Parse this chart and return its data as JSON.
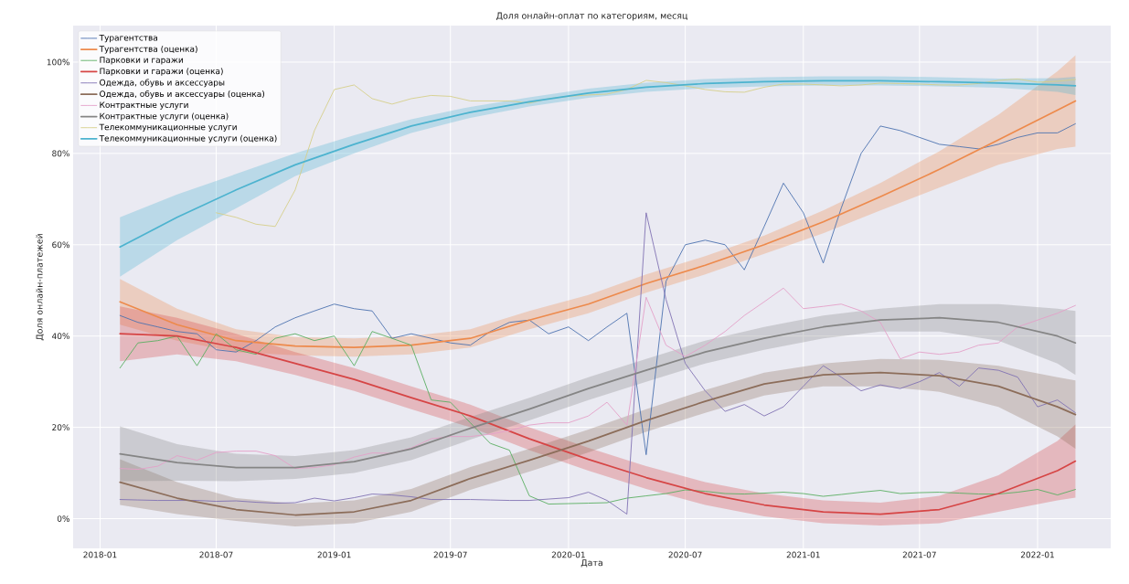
{
  "chart_data": {
    "type": "line",
    "title": "Доля онлайн-оплат по категориям, месяц",
    "xlabel": "Дата",
    "ylabel": "Доля онлайн-платежей",
    "x": [
      "2018-02",
      "2018-03",
      "2018-04",
      "2018-05",
      "2018-06",
      "2018-07",
      "2018-08",
      "2018-09",
      "2018-10",
      "2018-11",
      "2018-12",
      "2019-01",
      "2019-02",
      "2019-03",
      "2019-04",
      "2019-05",
      "2019-06",
      "2019-07",
      "2019-08",
      "2019-09",
      "2019-10",
      "2019-11",
      "2019-12",
      "2020-01",
      "2020-02",
      "2020-03",
      "2020-04",
      "2020-05",
      "2020-06",
      "2020-07",
      "2020-08",
      "2020-09",
      "2020-10",
      "2020-11",
      "2020-12",
      "2021-01",
      "2021-02",
      "2021-03",
      "2021-04",
      "2021-05",
      "2021-06",
      "2021-07",
      "2021-08",
      "2021-09",
      "2021-10",
      "2021-11",
      "2021-12",
      "2022-01",
      "2022-02",
      "2022-03"
    ],
    "xlim": [
      "2017-11-20",
      "2022-04-25"
    ],
    "xticks": [
      "2018-01",
      "2018-07",
      "2019-01",
      "2019-07",
      "2020-01",
      "2020-07",
      "2021-01",
      "2021-07",
      "2022-01"
    ],
    "ylim": [
      -6.5,
      108
    ],
    "yticks": [
      {
        "value": 0,
        "label": "0%"
      },
      {
        "value": 20,
        "label": "20%"
      },
      {
        "value": 40,
        "label": "40%"
      },
      {
        "value": 60,
        "label": "60%"
      },
      {
        "value": 80,
        "label": "80%"
      },
      {
        "value": 100,
        "label": "100%"
      }
    ],
    "grid": true,
    "legend": "top left",
    "series": [
      {
        "name": "Турагентства",
        "color": "#4c72b0",
        "values": [
          44.5,
          43,
          42,
          41,
          40.5,
          37,
          36.5,
          39,
          42,
          44,
          45.5,
          47,
          46,
          45.5,
          39.5,
          40.5,
          39.5,
          38.5,
          38,
          41,
          43,
          43.5,
          40.5,
          42,
          39,
          42,
          45,
          14,
          52,
          60,
          61,
          60,
          54.5,
          64,
          73.5,
          67,
          56,
          68,
          80,
          86,
          85,
          83.5,
          82,
          81.5,
          81,
          82,
          83.5,
          84.5,
          84.5,
          86.5
        ]
      },
      {
        "name": "Турагентства (оценка)",
        "color": "#ed8a4c",
        "x": [
          "2018-02",
          "2018-05",
          "2018-08",
          "2018-11",
          "2019-02",
          "2019-05",
          "2019-08",
          "2019-11",
          "2020-02",
          "2020-05",
          "2020-08",
          "2020-11",
          "2021-02",
          "2021-05",
          "2021-08",
          "2021-11",
          "2022-02",
          "2022-03"
        ],
        "values": [
          47.5,
          42.5,
          39,
          37.8,
          37.5,
          38,
          39.5,
          43.5,
          47,
          51.5,
          55.5,
          60,
          65,
          70.5,
          76.5,
          83,
          89.5,
          91.5
        ],
        "lower": [
          42.5,
          39,
          36.5,
          35.8,
          35.5,
          36,
          37.5,
          41.5,
          45,
          49.5,
          53.5,
          58,
          62.5,
          67.5,
          72.5,
          77.5,
          81,
          81.5
        ],
        "upper": [
          52.5,
          46,
          41.5,
          39.8,
          39.5,
          40,
          41.5,
          45.5,
          49,
          53.5,
          57.5,
          62,
          67.5,
          73.5,
          80.5,
          88.5,
          98,
          101.5
        ]
      },
      {
        "name": "Парковки и гаражи",
        "color": "#5aae61",
        "values": [
          33,
          38.5,
          39,
          40,
          33.5,
          40.5,
          37,
          36,
          39.5,
          40.5,
          39,
          40,
          33.5,
          41,
          39.5,
          38,
          26,
          25.5,
          21,
          16.5,
          15,
          5,
          3.2,
          3.3,
          3.4,
          3.5,
          4.5,
          5,
          5.5,
          6.3,
          6,
          5.5,
          5.4,
          5.6,
          5.8,
          5.5,
          4.9,
          5.3,
          5.8,
          6.2,
          5.5,
          5.7,
          5.8,
          5.6,
          5.4,
          5.4,
          5.8,
          6.4,
          5.2,
          6.4
        ]
      },
      {
        "name": "Парковки и гаражи (оценка)",
        "color": "#d64545",
        "x": [
          "2018-02",
          "2018-05",
          "2018-08",
          "2018-11",
          "2019-02",
          "2019-05",
          "2019-08",
          "2019-11",
          "2020-02",
          "2020-05",
          "2020-08",
          "2020-11",
          "2021-02",
          "2021-05",
          "2021-08",
          "2021-11",
          "2022-02",
          "2022-03"
        ],
        "values": [
          40.5,
          40,
          37.5,
          34,
          30.5,
          26.5,
          22.5,
          17.5,
          13,
          9,
          5.5,
          3,
          1.5,
          1,
          2,
          5.5,
          10.5,
          12.6
        ],
        "lower": [
          34.5,
          36,
          34.5,
          31.5,
          28,
          24,
          20,
          15,
          10.5,
          6.5,
          3,
          0.5,
          -1,
          -1.5,
          -1,
          1.5,
          4,
          4.6
        ],
        "upper": [
          46.5,
          44,
          40.5,
          36.5,
          33,
          29,
          25,
          20,
          15.5,
          11.5,
          8,
          5.5,
          4,
          3.5,
          5,
          9.5,
          17,
          20.6
        ]
      },
      {
        "name": "Одежда, обувь и аксессуары",
        "color": "#8172b3",
        "values": [
          4.2,
          4.1,
          4,
          4,
          4,
          3.8,
          3.9,
          3.6,
          3.4,
          3.5,
          4.5,
          3.9,
          4.6,
          5.4,
          5.2,
          4.8,
          4.2,
          4.2,
          4.2,
          4.1,
          4,
          4,
          4.3,
          4.6,
          5.8,
          4,
          1,
          67,
          48,
          34,
          28,
          23.5,
          25,
          22.5,
          24.5,
          29,
          33.5,
          31,
          28,
          29.3,
          28.5,
          30,
          32,
          29,
          33,
          32.5,
          31,
          24.5,
          26,
          23.2
        ]
      },
      {
        "name": "Одежда, обувь и аксессуары (оценка)",
        "color": "#8c6d5a",
        "x": [
          "2018-02",
          "2018-05",
          "2018-08",
          "2018-11",
          "2019-02",
          "2019-05",
          "2019-08",
          "2019-11",
          "2020-02",
          "2020-05",
          "2020-08",
          "2020-11",
          "2021-02",
          "2021-05",
          "2021-08",
          "2021-11",
          "2022-02",
          "2022-03"
        ],
        "values": [
          8,
          4.5,
          2,
          0.8,
          1.5,
          4,
          8.8,
          12.8,
          17,
          21.5,
          25.7,
          29.5,
          31.5,
          32,
          31.3,
          29,
          24.5,
          22.8
        ],
        "lower": [
          3,
          1,
          -0.5,
          -1.7,
          -1,
          1.5,
          6.3,
          10.3,
          14.5,
          19,
          23.2,
          27,
          29,
          29,
          27.8,
          24.5,
          18,
          15.3
        ],
        "upper": [
          13,
          8,
          4.5,
          3.3,
          4,
          6.5,
          11.3,
          15.3,
          19.5,
          24,
          28.2,
          32,
          34,
          35,
          34.8,
          33.5,
          31,
          30.3
        ]
      },
      {
        "name": "Контрактные услуги",
        "color": "#e4a0c8",
        "values": [
          11,
          10.8,
          11.5,
          13.8,
          12.8,
          14.5,
          14.8,
          14.8,
          13.8,
          11,
          11.2,
          11.8,
          13.5,
          14.4,
          14.3,
          15.5,
          17.5,
          18,
          18,
          18.5,
          19.3,
          20.5,
          21,
          21,
          22.5,
          25.5,
          20.5,
          48.5,
          38,
          35.5,
          38,
          41,
          44.5,
          47.5,
          50.5,
          46,
          46.5,
          47,
          45.5,
          43,
          35,
          36.5,
          36,
          36.5,
          38,
          38.5,
          42,
          43.5,
          45,
          46.7
        ]
      },
      {
        "name": "Контрактные услуги (оценка)",
        "color": "#858585",
        "x": [
          "2018-02",
          "2018-05",
          "2018-08",
          "2018-11",
          "2019-02",
          "2019-05",
          "2019-08",
          "2019-11",
          "2020-02",
          "2020-05",
          "2020-08",
          "2020-11",
          "2021-02",
          "2021-05",
          "2021-08",
          "2021-11",
          "2022-02",
          "2022-03"
        ],
        "values": [
          14.2,
          12.3,
          11.2,
          11.2,
          12.5,
          15.3,
          19.8,
          24,
          28.5,
          32.5,
          36.5,
          39.5,
          42,
          43.5,
          44,
          43,
          40,
          38.5
        ],
        "lower": [
          8.2,
          8.3,
          8.2,
          8.7,
          10,
          12.8,
          17.3,
          21.5,
          26,
          30,
          34,
          37,
          39.5,
          41,
          41,
          39,
          34,
          31.5
        ],
        "upper": [
          20.2,
          16.3,
          14.2,
          13.7,
          15,
          17.8,
          22.3,
          26.5,
          31,
          35,
          39,
          42,
          44.5,
          46,
          47,
          47,
          46,
          45.5
        ]
      },
      {
        "name": "Телекоммуникационные услуги",
        "color": "#d6cf8a",
        "values": [
          null,
          null,
          null,
          null,
          null,
          67,
          66,
          64.5,
          64,
          72,
          85,
          94,
          95,
          92,
          90.8,
          92,
          92.7,
          92.5,
          91.5,
          91.5,
          91.5,
          91,
          92,
          92.5,
          92.8,
          93,
          94,
          96,
          95.5,
          94.8,
          94,
          93.5,
          93.4,
          94.5,
          95.2,
          95.2,
          95,
          94.8,
          95,
          95.4,
          95.3,
          95.2,
          95,
          95,
          95.3,
          96,
          96.3,
          95.6,
          95.8,
          96.2
        ]
      },
      {
        "name": "Телекоммуникационные услуги (оценка)",
        "color": "#4cb3cf",
        "x": [
          "2018-02",
          "2018-05",
          "2018-08",
          "2018-11",
          "2019-02",
          "2019-05",
          "2019-08",
          "2019-11",
          "2020-02",
          "2020-05",
          "2020-08",
          "2020-11",
          "2021-02",
          "2021-05",
          "2021-08",
          "2021-11",
          "2022-02",
          "2022-03"
        ],
        "values": [
          59.5,
          66,
          72,
          77.5,
          82,
          86,
          89,
          91.3,
          93.2,
          94.5,
          95.3,
          95.7,
          95.9,
          95.9,
          95.7,
          95.4,
          95,
          94.8
        ],
        "lower": [
          53,
          61,
          null,
          75,
          80,
          84.5,
          87.8,
          90.3,
          92.2,
          93.5,
          94.3,
          94.7,
          94.9,
          94.9,
          94.7,
          94.4,
          93.5,
          92.8
        ],
        "upper": [
          66,
          71,
          null,
          80,
          84,
          87.5,
          90.2,
          92.3,
          94.2,
          95.5,
          96.3,
          96.7,
          96.9,
          96.9,
          96.7,
          96.4,
          96.5,
          96.8
        ]
      }
    ]
  }
}
